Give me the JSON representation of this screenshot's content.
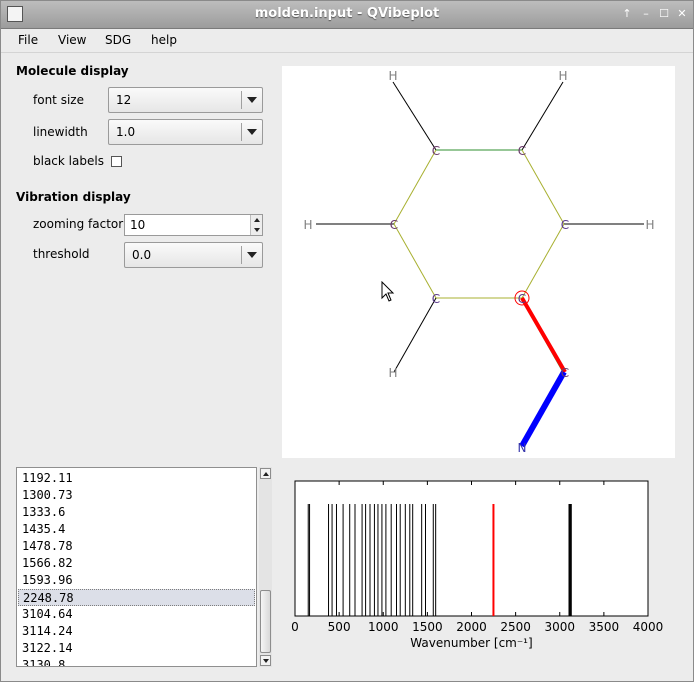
{
  "window": {
    "title": "molden.input - QVibeplot",
    "controls": [
      "↑",
      "–",
      "☐",
      "✕"
    ]
  },
  "menu": [
    "File",
    "View",
    "SDG",
    "help"
  ],
  "molecule_display": {
    "title": "Molecule display",
    "font_size_label": "font size",
    "font_size_value": "12",
    "linewidth_label": "linewidth",
    "linewidth_value": "1.0",
    "black_labels_label": "black labels",
    "black_labels_checked": false
  },
  "vibration_display": {
    "title": "Vibration display",
    "zooming_label": "zooming factor",
    "zooming_value": "10",
    "threshold_label": "threshold",
    "threshold_value": "0.0"
  },
  "molecule": {
    "atoms": [
      {
        "label": "H"
      },
      {
        "label": "H"
      },
      {
        "label": "C"
      },
      {
        "label": "C"
      },
      {
        "label": "H"
      },
      {
        "label": "C"
      },
      {
        "label": "C"
      },
      {
        "label": "H"
      },
      {
        "label": "C"
      },
      {
        "label": "C"
      },
      {
        "label": "H"
      },
      {
        "label": "C"
      },
      {
        "label": "N"
      }
    ]
  },
  "frequencies": {
    "items": [
      "1192.11",
      "1300.73",
      "1333.6",
      "1435.4",
      "1478.78",
      "1566.82",
      "1593.96",
      "2248.78",
      "3104.64",
      "3114.24",
      "3122.14",
      "3130.8"
    ],
    "selected_index": 7
  },
  "chart_data": {
    "type": "bar",
    "xlabel": "Wavenumber [cm⁻¹]",
    "xlim": [
      0,
      4000
    ],
    "xticks": [
      "0",
      "500",
      "1000",
      "1500",
      "2000",
      "2500",
      "3000",
      "3500",
      "4000"
    ],
    "lines": [
      150,
      165,
      380,
      420,
      470,
      545,
      620,
      680,
      760,
      800,
      850,
      900,
      940,
      985,
      1030,
      1090,
      1150,
      1192.11,
      1250,
      1300.73,
      1333.6,
      1435.4,
      1478.78,
      1566.82,
      1593.96,
      2248.78,
      3104.64,
      3114.24,
      3122.14,
      3130.8
    ],
    "highlight": 2248.78,
    "colors": {
      "line": "#000000",
      "highlight": "#ff0000"
    }
  }
}
